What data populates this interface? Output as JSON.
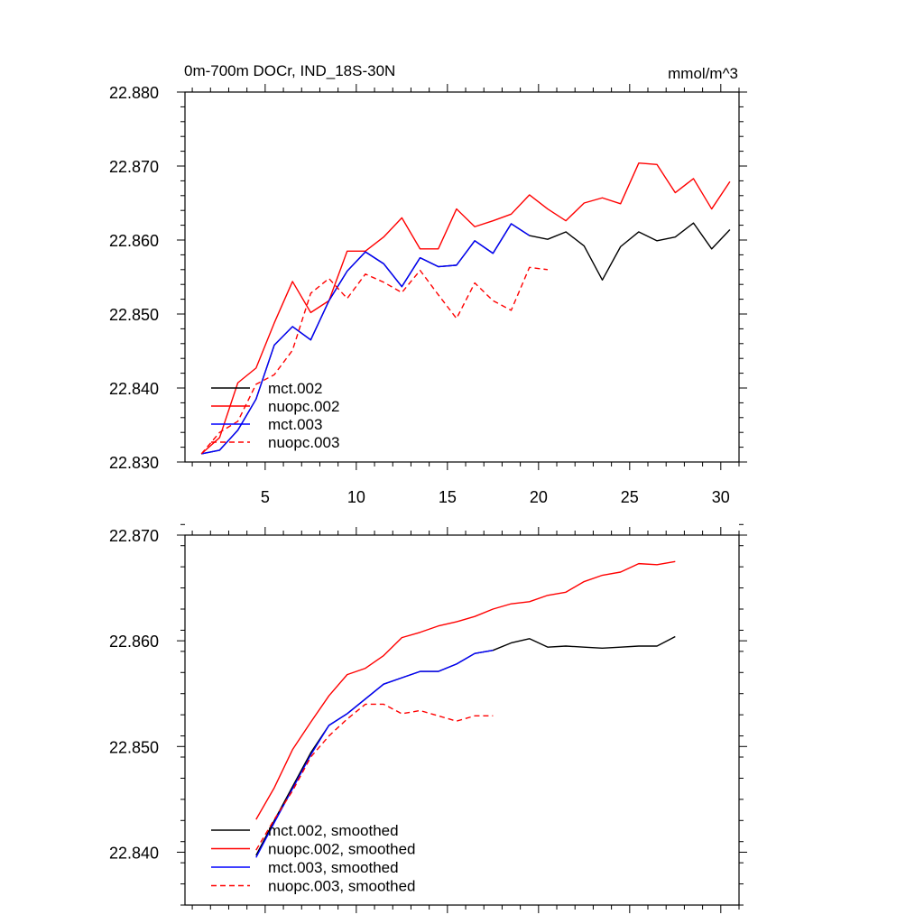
{
  "colors": {
    "mct_002": "#000000",
    "nuopc_002": "#ff0000",
    "mct_003": "#0000ff",
    "nuopc_003": "#ff0000"
  },
  "chart_data": [
    {
      "type": "line",
      "title": "0m-700m DOCr, IND_18S-30N",
      "units": "mmol/m^3",
      "xlim": [
        0.6,
        31
      ],
      "ylim": [
        22.83,
        22.88
      ],
      "x_ticks": [
        5,
        10,
        15,
        20,
        25,
        30
      ],
      "x_tick_labels": [
        "5",
        "10",
        "15",
        "20",
        "25",
        "30"
      ],
      "y_ticks": [
        22.83,
        22.84,
        22.85,
        22.86,
        22.87,
        22.88
      ],
      "y_tick_labels": [
        "22.830",
        "22.840",
        "22.850",
        "22.860",
        "22.870",
        "22.880"
      ],
      "legend_position": "bottom-left",
      "series": [
        {
          "name": "mct.002",
          "color": "#000000",
          "dash": "solid",
          "x": [
            1.5,
            2.5,
            3.5,
            4.5,
            5.5,
            6.5,
            7.5,
            8.5,
            9.5,
            10.5,
            11.5,
            12.5,
            13.5,
            14.5,
            15.5,
            16.5,
            17.5,
            18.5,
            19.5,
            20.5,
            21.5,
            22.5,
            23.5,
            24.5,
            25.5,
            26.5,
            27.5,
            28.5,
            29.5,
            30.5
          ],
          "values": [
            22.8311,
            22.8316,
            22.8343,
            22.8385,
            22.8458,
            22.8483,
            22.8465,
            22.8518,
            22.8558,
            22.8584,
            22.8568,
            22.8537,
            22.8576,
            22.8564,
            22.8566,
            22.8599,
            22.8582,
            22.8622,
            22.8606,
            22.8601,
            22.8611,
            22.8592,
            22.8546,
            22.8591,
            22.8611,
            22.8599,
            22.8604,
            22.8623,
            22.8588,
            22.8614
          ]
        },
        {
          "name": "nuopc.002",
          "color": "#ff0000",
          "dash": "solid",
          "x": [
            1.5,
            2.5,
            3.5,
            4.5,
            5.5,
            6.5,
            7.5,
            8.5,
            9.5,
            10.5,
            11.5,
            12.5,
            13.5,
            14.5,
            15.5,
            16.5,
            17.5,
            18.5,
            19.5,
            20.5,
            21.5,
            22.5,
            23.5,
            24.5,
            25.5,
            26.5,
            27.5,
            28.5,
            29.5,
            30.5
          ],
          "values": [
            22.8311,
            22.8333,
            22.8407,
            22.8427,
            22.8488,
            22.8544,
            22.8502,
            22.8518,
            22.8585,
            22.8585,
            22.8604,
            22.863,
            22.8588,
            22.8588,
            22.8642,
            22.8618,
            22.8626,
            22.8635,
            22.8661,
            22.8642,
            22.8626,
            22.865,
            22.8657,
            22.8649,
            22.8704,
            22.8702,
            22.8664,
            22.8683,
            22.8642,
            22.8679
          ]
        },
        {
          "name": "mct.003",
          "color": "#0000ff",
          "dash": "solid",
          "x": [
            1.5,
            2.5,
            3.5,
            4.5,
            5.5,
            6.5,
            7.5,
            8.5,
            9.5,
            10.5,
            11.5,
            12.5,
            13.5,
            14.5,
            15.5,
            16.5,
            17.5,
            18.5,
            19.5
          ],
          "values": [
            22.8311,
            22.8316,
            22.8343,
            22.8385,
            22.8458,
            22.8483,
            22.8465,
            22.8518,
            22.8558,
            22.8584,
            22.8568,
            22.8537,
            22.8576,
            22.8564,
            22.8566,
            22.8599,
            22.8582,
            22.8622,
            22.8606
          ]
        },
        {
          "name": "nuopc.003",
          "color": "#ff0000",
          "dash": "dashed",
          "x": [
            1.5,
            2.5,
            3.5,
            4.5,
            5.5,
            6.5,
            7.5,
            8.5,
            9.5,
            10.5,
            11.5,
            12.5,
            13.5,
            14.5,
            15.5,
            16.5,
            17.5,
            18.5,
            19.5,
            20.5
          ],
          "values": [
            22.8311,
            22.834,
            22.8355,
            22.8405,
            22.8418,
            22.8451,
            22.8528,
            22.8548,
            22.8521,
            22.8554,
            22.8543,
            22.8529,
            22.8559,
            22.8526,
            22.8494,
            22.8542,
            22.8518,
            22.8505,
            22.8563,
            22.856
          ]
        }
      ]
    },
    {
      "type": "line",
      "title": "",
      "xlim": [
        0.6,
        31
      ],
      "ylim": [
        22.835,
        22.87
      ],
      "y_ticks": [
        22.84,
        22.85,
        22.86,
        22.87
      ],
      "y_tick_labels": [
        "22.840",
        "22.850",
        "22.860",
        "22.870"
      ],
      "legend_position": "bottom-left",
      "series": [
        {
          "name": "mct.002, smoothed",
          "color": "#000000",
          "dash": "solid",
          "x": [
            4.5,
            5.5,
            6.5,
            7.5,
            8.5,
            9.5,
            10.5,
            11.5,
            12.5,
            13.5,
            14.5,
            15.5,
            16.5,
            17.5,
            18.5,
            19.5,
            20.5,
            21.5,
            22.5,
            23.5,
            24.5,
            25.5,
            26.5,
            27.5
          ],
          "values": [
            22.8397,
            22.843,
            22.8462,
            22.8494,
            22.852,
            22.8531,
            22.8545,
            22.8559,
            22.8565,
            22.8571,
            22.8571,
            22.8578,
            22.8588,
            22.8591,
            22.8598,
            22.8602,
            22.8594,
            22.8595,
            22.8594,
            22.8593,
            22.8594,
            22.8595,
            22.8595,
            22.8604
          ]
        },
        {
          "name": "nuopc.002, smoothed",
          "color": "#ff0000",
          "dash": "solid",
          "x": [
            4.5,
            5.5,
            6.5,
            7.5,
            8.5,
            9.5,
            10.5,
            11.5,
            12.5,
            13.5,
            14.5,
            15.5,
            16.5,
            17.5,
            18.5,
            19.5,
            20.5,
            21.5,
            22.5,
            23.5,
            24.5,
            25.5,
            26.5,
            27.5
          ],
          "values": [
            22.8431,
            22.8461,
            22.8497,
            22.8523,
            22.8548,
            22.8568,
            22.8574,
            22.8586,
            22.8603,
            22.8608,
            22.8614,
            22.8618,
            22.8623,
            22.863,
            22.8635,
            22.8637,
            22.8643,
            22.8646,
            22.8656,
            22.8662,
            22.8665,
            22.8673,
            22.8672,
            22.8675
          ]
        },
        {
          "name": "mct.003, smoothed",
          "color": "#0000ff",
          "dash": "solid",
          "x": [
            4.5,
            5.5,
            6.5,
            7.5,
            8.5,
            9.5,
            10.5,
            11.5,
            12.5,
            13.5,
            14.5,
            15.5,
            16.5,
            17.5
          ],
          "values": [
            22.8395,
            22.8428,
            22.846,
            22.8492,
            22.852,
            22.8531,
            22.8545,
            22.8559,
            22.8565,
            22.8571,
            22.8571,
            22.8578,
            22.8588,
            22.8591
          ]
        },
        {
          "name": "nuopc.003, smoothed",
          "color": "#ff0000",
          "dash": "dashed",
          "x": [
            4.5,
            5.5,
            6.5,
            7.5,
            8.5,
            9.5,
            10.5,
            11.5,
            12.5,
            13.5,
            14.5,
            15.5,
            16.5,
            17.5
          ],
          "values": [
            22.8402,
            22.8431,
            22.8458,
            22.849,
            22.851,
            22.8526,
            22.854,
            22.854,
            22.8531,
            22.8534,
            22.8529,
            22.8524,
            22.8529,
            22.8529
          ]
        }
      ]
    }
  ]
}
